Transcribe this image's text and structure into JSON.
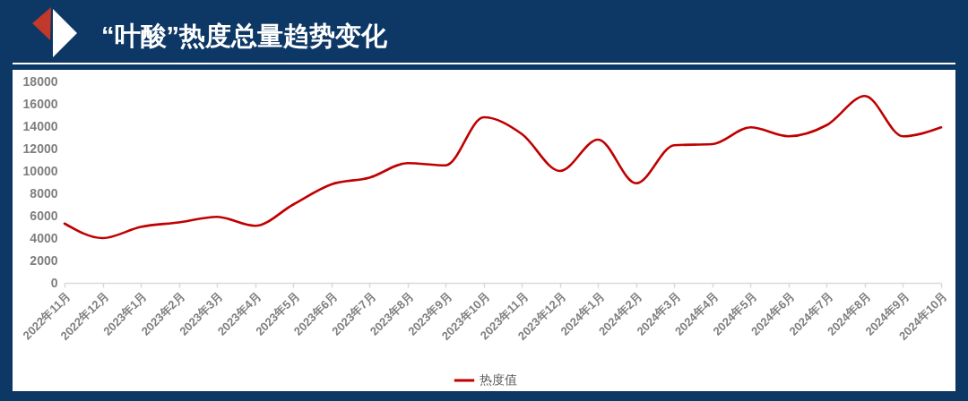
{
  "chart_data": {
    "type": "line",
    "title": "“叶酸”热度总量趋势变化",
    "categories": [
      "2022年11月",
      "2022年12月",
      "2023年1月",
      "2023年2月",
      "2023年3月",
      "2023年4月",
      "2023年5月",
      "2023年6月",
      "2023年7月",
      "2023年8月",
      "2023年9月",
      "2023年10月",
      "2023年11月",
      "2023年12月",
      "2024年1月",
      "2024年2月",
      "2024年3月",
      "2024年4月",
      "2024年5月",
      "2024年6月",
      "2024年7月",
      "2024年8月",
      "2024年9月",
      "2024年10月"
    ],
    "series": [
      {
        "name": "热度值",
        "color": "#c00000",
        "values": [
          5300,
          4000,
          5000,
          5400,
          5900,
          5100,
          7000,
          8800,
          9400,
          10700,
          10500,
          14800,
          13300,
          10000,
          12800,
          8900,
          12300,
          12400,
          13900,
          13100,
          14100,
          16700,
          13100,
          13900
        ]
      }
    ],
    "ylim": [
      0,
      18000
    ],
    "yticks": [
      0,
      2000,
      4000,
      6000,
      8000,
      10000,
      12000,
      14000,
      16000,
      18000
    ],
    "grid": false,
    "legend": "bottom"
  }
}
